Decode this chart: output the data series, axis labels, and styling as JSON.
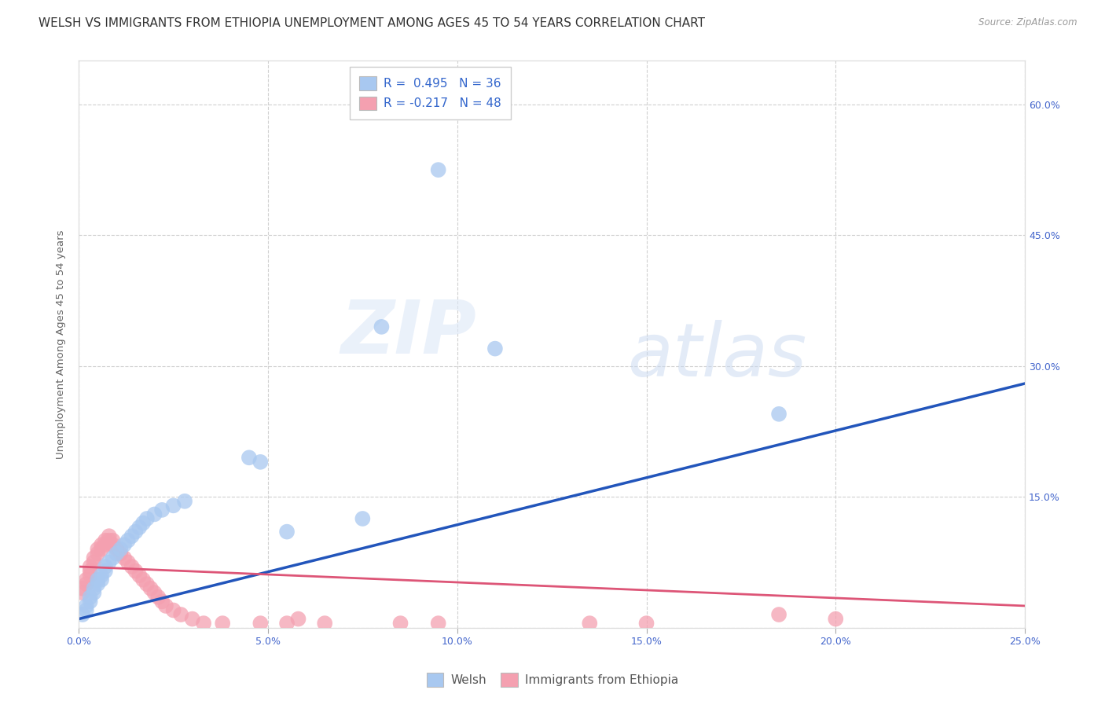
{
  "title": "WELSH VS IMMIGRANTS FROM ETHIOPIA UNEMPLOYMENT AMONG AGES 45 TO 54 YEARS CORRELATION CHART",
  "source": "Source: ZipAtlas.com",
  "ylabel": "Unemployment Among Ages 45 to 54 years",
  "xlim": [
    0.0,
    0.25
  ],
  "ylim": [
    0.0,
    0.65
  ],
  "xticks": [
    0.0,
    0.05,
    0.1,
    0.15,
    0.2,
    0.25
  ],
  "yticks": [
    0.0,
    0.15,
    0.3,
    0.45,
    0.6
  ],
  "xtick_labels": [
    "0.0%",
    "5.0%",
    "10.0%",
    "15.0%",
    "20.0%",
    "25.0%"
  ],
  "ytick_labels_right": [
    "",
    "15.0%",
    "30.0%",
    "45.0%",
    "60.0%"
  ],
  "welsh_color": "#a8c8f0",
  "ethiopia_color": "#f4a0b0",
  "welsh_line_color": "#2255bb",
  "ethiopia_line_color": "#dd5577",
  "background_color": "#ffffff",
  "watermark_zip": "ZIP",
  "watermark_atlas": "atlas",
  "welsh_scatter": [
    [
      0.001,
      0.015
    ],
    [
      0.002,
      0.02
    ],
    [
      0.002,
      0.025
    ],
    [
      0.003,
      0.03
    ],
    [
      0.003,
      0.035
    ],
    [
      0.004,
      0.04
    ],
    [
      0.004,
      0.045
    ],
    [
      0.005,
      0.05
    ],
    [
      0.005,
      0.055
    ],
    [
      0.006,
      0.055
    ],
    [
      0.006,
      0.06
    ],
    [
      0.007,
      0.065
    ],
    [
      0.007,
      0.07
    ],
    [
      0.008,
      0.075
    ],
    [
      0.009,
      0.08
    ],
    [
      0.01,
      0.085
    ],
    [
      0.011,
      0.09
    ],
    [
      0.012,
      0.095
    ],
    [
      0.013,
      0.1
    ],
    [
      0.014,
      0.105
    ],
    [
      0.015,
      0.11
    ],
    [
      0.016,
      0.115
    ],
    [
      0.017,
      0.12
    ],
    [
      0.018,
      0.125
    ],
    [
      0.02,
      0.13
    ],
    [
      0.022,
      0.135
    ],
    [
      0.025,
      0.14
    ],
    [
      0.028,
      0.145
    ],
    [
      0.045,
      0.195
    ],
    [
      0.048,
      0.19
    ],
    [
      0.055,
      0.11
    ],
    [
      0.075,
      0.125
    ],
    [
      0.08,
      0.345
    ],
    [
      0.095,
      0.525
    ],
    [
      0.11,
      0.32
    ],
    [
      0.185,
      0.245
    ]
  ],
  "ethiopia_scatter": [
    [
      0.001,
      0.04
    ],
    [
      0.001,
      0.045
    ],
    [
      0.002,
      0.05
    ],
    [
      0.002,
      0.055
    ],
    [
      0.003,
      0.06
    ],
    [
      0.003,
      0.065
    ],
    [
      0.003,
      0.07
    ],
    [
      0.004,
      0.075
    ],
    [
      0.004,
      0.08
    ],
    [
      0.005,
      0.085
    ],
    [
      0.005,
      0.09
    ],
    [
      0.006,
      0.09
    ],
    [
      0.006,
      0.095
    ],
    [
      0.007,
      0.095
    ],
    [
      0.007,
      0.1
    ],
    [
      0.008,
      0.1
    ],
    [
      0.008,
      0.105
    ],
    [
      0.009,
      0.1
    ],
    [
      0.009,
      0.095
    ],
    [
      0.01,
      0.09
    ],
    [
      0.011,
      0.085
    ],
    [
      0.012,
      0.08
    ],
    [
      0.013,
      0.075
    ],
    [
      0.014,
      0.07
    ],
    [
      0.015,
      0.065
    ],
    [
      0.016,
      0.06
    ],
    [
      0.017,
      0.055
    ],
    [
      0.018,
      0.05
    ],
    [
      0.019,
      0.045
    ],
    [
      0.02,
      0.04
    ],
    [
      0.021,
      0.035
    ],
    [
      0.022,
      0.03
    ],
    [
      0.023,
      0.025
    ],
    [
      0.025,
      0.02
    ],
    [
      0.027,
      0.015
    ],
    [
      0.03,
      0.01
    ],
    [
      0.033,
      0.005
    ],
    [
      0.038,
      0.005
    ],
    [
      0.048,
      0.005
    ],
    [
      0.055,
      0.005
    ],
    [
      0.058,
      0.01
    ],
    [
      0.065,
      0.005
    ],
    [
      0.085,
      0.005
    ],
    [
      0.095,
      0.005
    ],
    [
      0.135,
      0.005
    ],
    [
      0.15,
      0.005
    ],
    [
      0.185,
      0.015
    ],
    [
      0.2,
      0.01
    ]
  ],
  "welsh_trend_x": [
    0.0,
    0.25
  ],
  "welsh_trend_y": [
    0.01,
    0.28
  ],
  "ethiopia_trend_x": [
    0.0,
    0.25
  ],
  "ethiopia_trend_y": [
    0.07,
    0.025
  ],
  "title_fontsize": 11,
  "axis_label_fontsize": 9.5,
  "tick_fontsize": 9,
  "legend_fontsize": 11
}
